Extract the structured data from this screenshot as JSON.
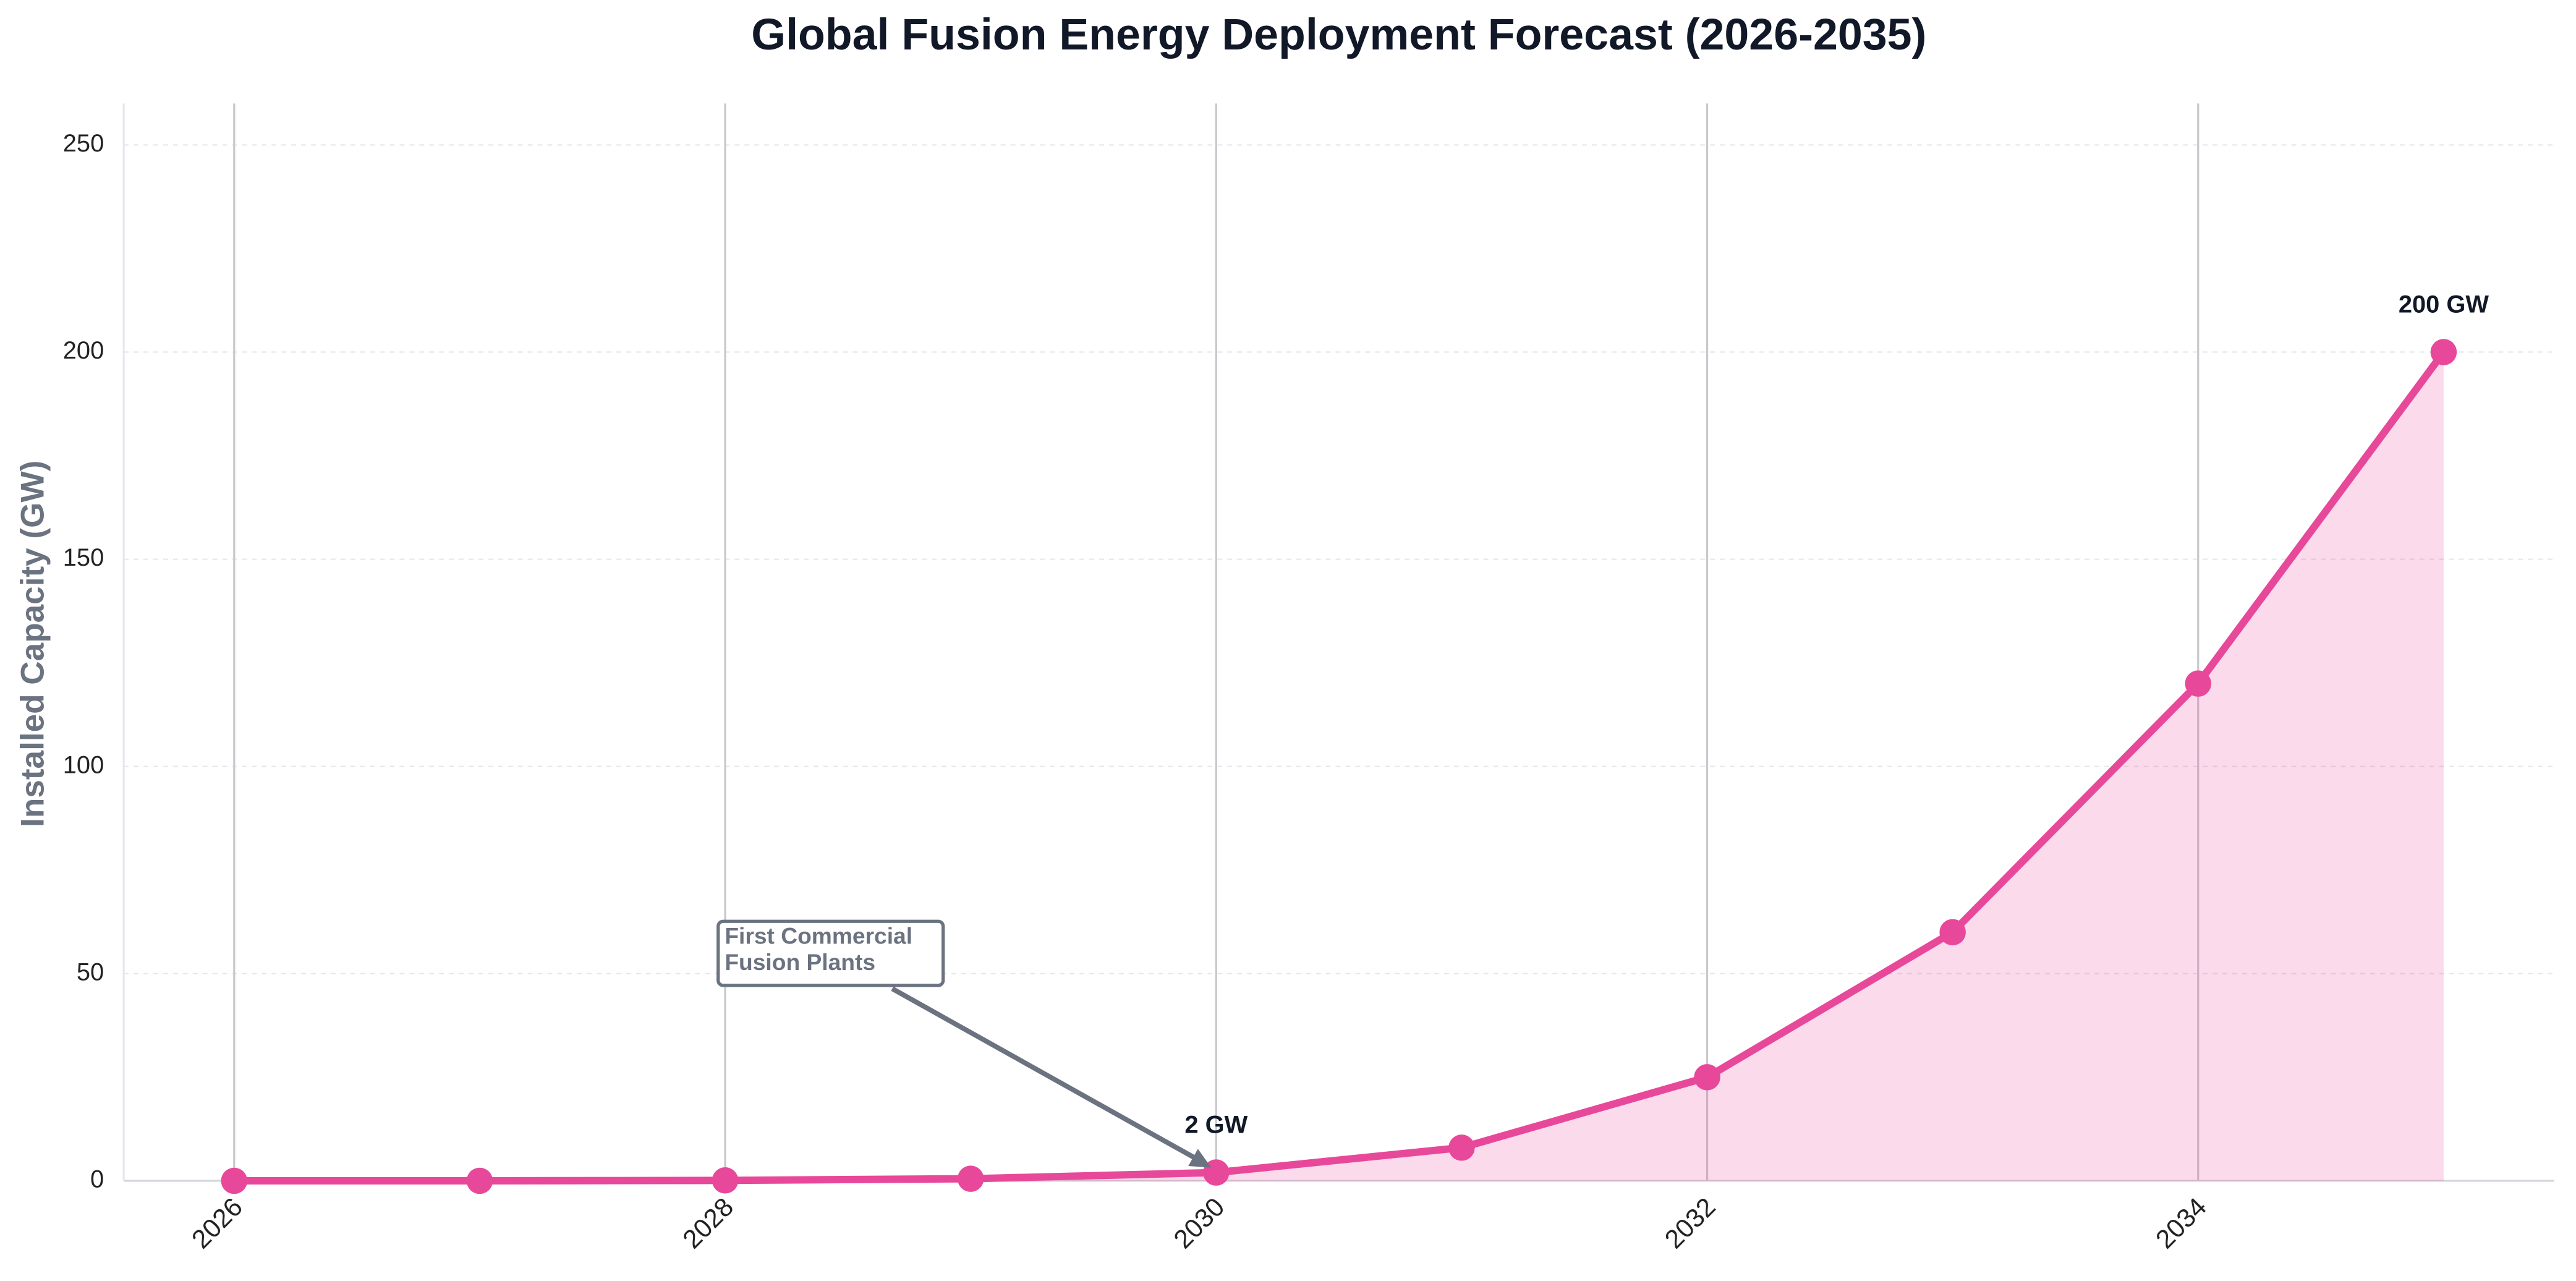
{
  "chart_data": {
    "type": "line",
    "title": "Global Fusion Energy Deployment Forecast (2026-2035)",
    "y_label": "Installed Capacity (GW)",
    "x": [
      2026,
      2027,
      2028,
      2029,
      2030,
      2031,
      2032,
      2033,
      2034,
      2035
    ],
    "series": [
      {
        "name": "Installed Capacity",
        "color": "#e8489a",
        "values": [
          0,
          0,
          0.1,
          0.5,
          2,
          8,
          25,
          60,
          120,
          200
        ],
        "value_labels": [
          null,
          null,
          null,
          null,
          "2 GW",
          null,
          null,
          null,
          null,
          "200 GW"
        ]
      }
    ],
    "xlim": [
      2025.55,
      2035.45
    ],
    "xticks": [
      2026,
      2028,
      2030,
      2032,
      2034
    ],
    "ylim": [
      0,
      260
    ],
    "yticks": [
      0,
      50,
      100,
      150,
      200,
      250
    ],
    "grid": true,
    "fill": true,
    "annotation": {
      "lines": [
        "First Commercial",
        "Fusion Plants"
      ]
    }
  }
}
